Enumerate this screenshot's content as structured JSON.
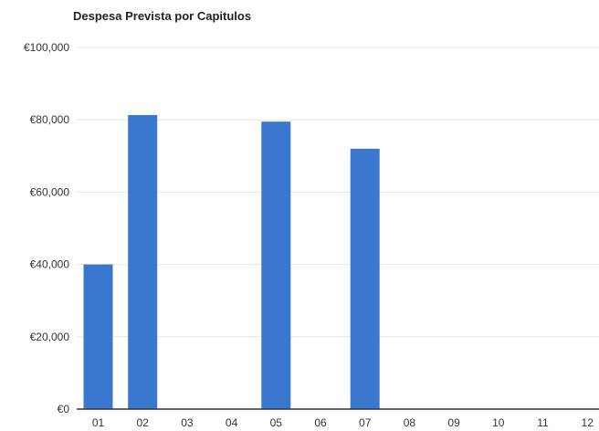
{
  "chart_data": {
    "type": "bar",
    "title": "Despesa Prevista por Capitulos",
    "xlabel": "",
    "ylabel": "",
    "categories": [
      "01",
      "02",
      "03",
      "04",
      "05",
      "06",
      "07",
      "08",
      "09",
      "10",
      "11",
      "12"
    ],
    "values": [
      40000,
      81300,
      0,
      0,
      79500,
      0,
      72000,
      0,
      0,
      0,
      0,
      0
    ],
    "ylim": [
      0,
      100000
    ],
    "yticks": [
      "€0",
      "€20,000",
      "€40,000",
      "€60,000",
      "€80,000",
      "€100,000"
    ],
    "grid": true,
    "legend": "none",
    "colors": {
      "bar": "#3a78d0",
      "grid": "#e6e6e6",
      "axis": "#333333"
    }
  }
}
